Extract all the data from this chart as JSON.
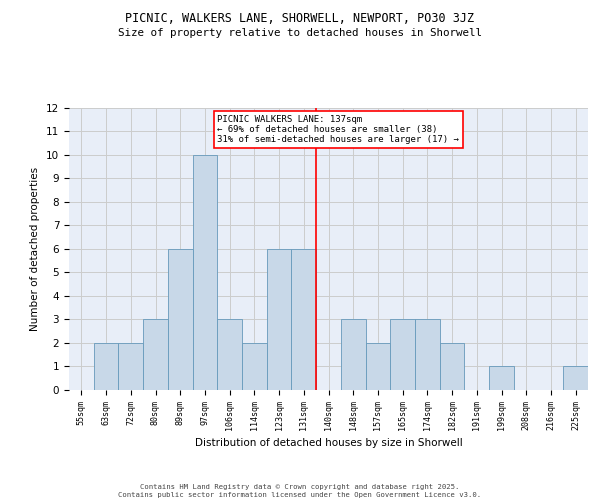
{
  "title1": "PICNIC, WALKERS LANE, SHORWELL, NEWPORT, PO30 3JZ",
  "title2": "Size of property relative to detached houses in Shorwell",
  "xlabel": "Distribution of detached houses by size in Shorwell",
  "ylabel": "Number of detached properties",
  "footer": "Contains HM Land Registry data © Crown copyright and database right 2025.\nContains public sector information licensed under the Open Government Licence v3.0.",
  "bin_labels": [
    "55sqm",
    "63sqm",
    "72sqm",
    "80sqm",
    "89sqm",
    "97sqm",
    "106sqm",
    "114sqm",
    "123sqm",
    "131sqm",
    "140sqm",
    "148sqm",
    "157sqm",
    "165sqm",
    "174sqm",
    "182sqm",
    "191sqm",
    "199sqm",
    "208sqm",
    "216sqm",
    "225sqm"
  ],
  "bar_values": [
    0,
    2,
    2,
    3,
    6,
    10,
    3,
    2,
    6,
    6,
    0,
    3,
    2,
    3,
    3,
    2,
    0,
    1,
    0,
    0,
    1
  ],
  "bar_color": "#c8d8e8",
  "bar_edge_color": "#6699bb",
  "grid_color": "#cccccc",
  "background_color": "#e8eef8",
  "vline_x_index": 9.5,
  "vline_color": "red",
  "annotation_text": "PICNIC WALKERS LANE: 137sqm\n← 69% of detached houses are smaller (38)\n31% of semi-detached houses are larger (17) →",
  "annotation_box_color": "white",
  "annotation_box_edge": "red",
  "ylim": [
    0,
    12
  ],
  "yticks": [
    0,
    1,
    2,
    3,
    4,
    5,
    6,
    7,
    8,
    9,
    10,
    11,
    12
  ]
}
